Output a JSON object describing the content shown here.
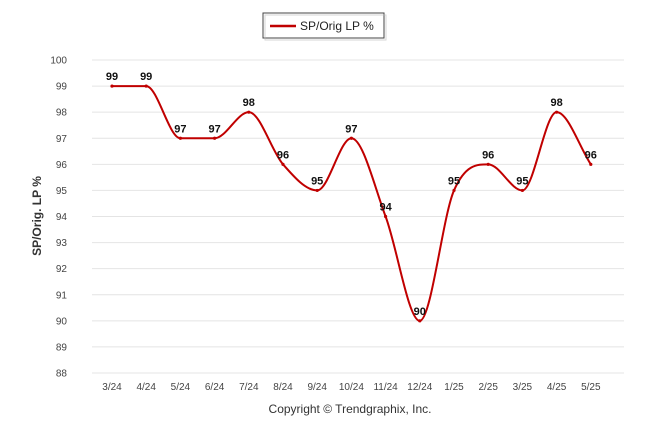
{
  "chart_data": {
    "type": "line",
    "categories": [
      "3/24",
      "4/24",
      "5/24",
      "6/24",
      "7/24",
      "8/24",
      "9/24",
      "10/24",
      "11/24",
      "12/24",
      "1/25",
      "2/25",
      "3/25",
      "4/25",
      "5/25"
    ],
    "series": [
      {
        "name": "SP/Orig LP %",
        "values": [
          99,
          99,
          97,
          97,
          98,
          96,
          95,
          97,
          94,
          90,
          95,
          96,
          95,
          98,
          96
        ],
        "color": "#c00000"
      }
    ],
    "data_labels": [
      "99",
      "99",
      "97",
      "97",
      "98",
      "96",
      "95",
      "97",
      "94",
      "90",
      "95",
      "96",
      "95",
      "98",
      "96"
    ],
    "ylabel": "SP/Orig. LP %",
    "xlabel": "",
    "ylim": [
      88,
      100
    ],
    "yticks": [
      "88",
      "89",
      "90",
      "91",
      "92",
      "93",
      "94",
      "95",
      "96",
      "97",
      "98",
      "99",
      "100"
    ],
    "grid": true,
    "legend_position": "top-center",
    "footer": "Copyright © Trendgraphix, Inc."
  }
}
